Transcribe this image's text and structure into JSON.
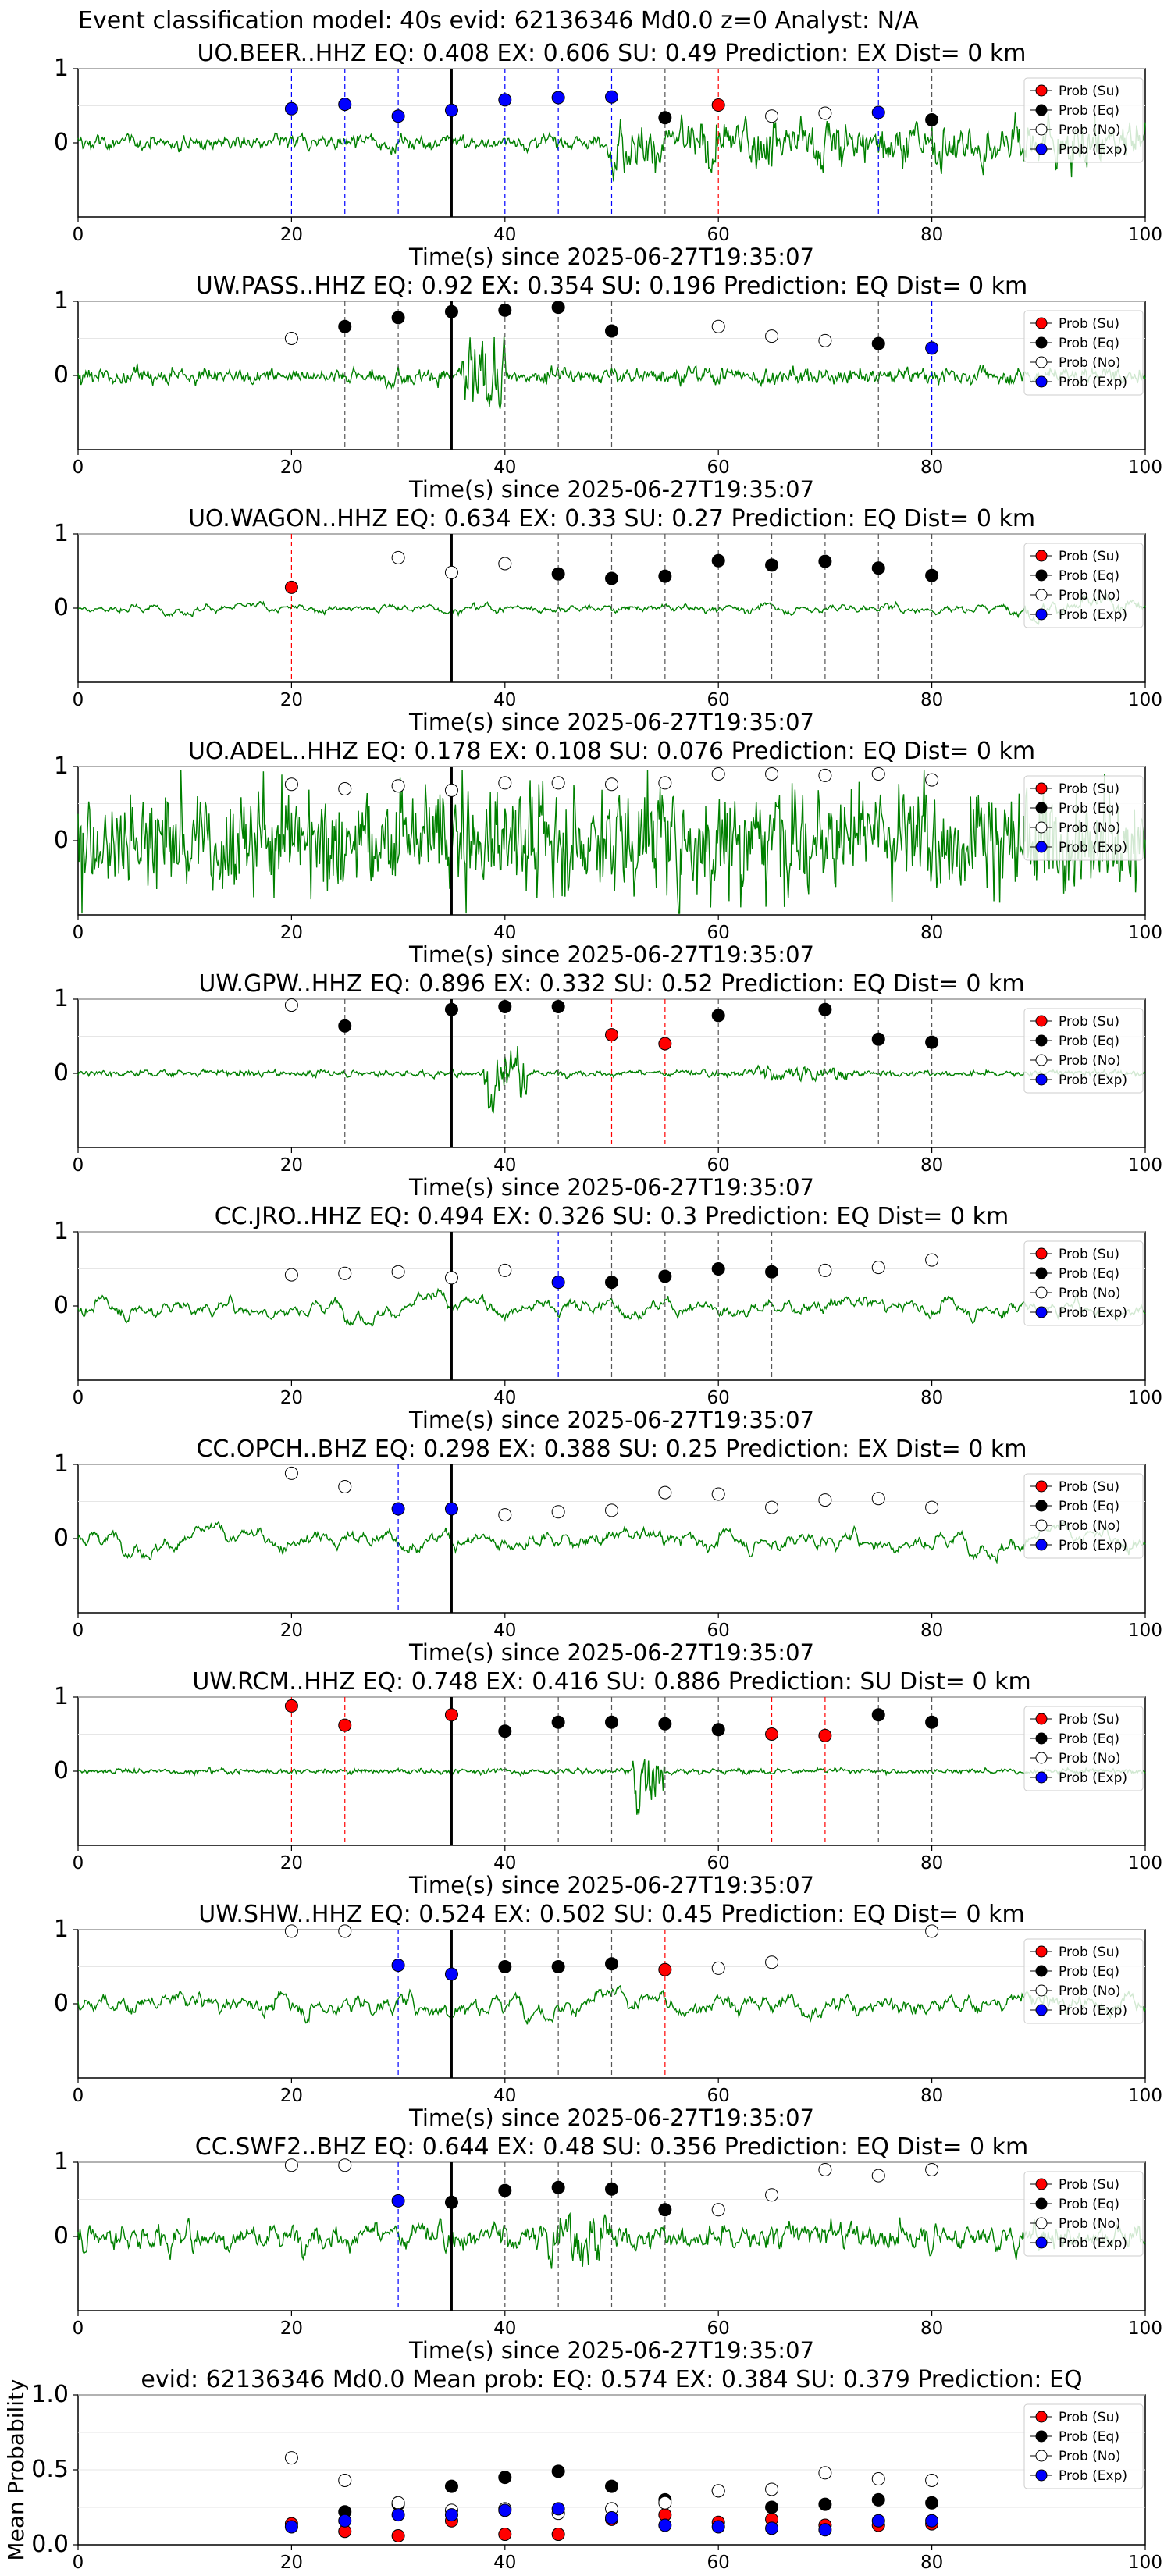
{
  "figure_title": "Event classification model: 40s evid: 62136346 Md0.0 z=0 Analyst: N/A",
  "xlabel": "Time(s) since 2025-06-27T19:35:07",
  "colors": {
    "su": "#ff0000",
    "eq": "#000000",
    "no": "#ffffff",
    "exp": "#0000ff",
    "wave": "#008000"
  },
  "legend": [
    "Prob (Su)",
    "Prob (Eq)",
    "Prob (No)",
    "Prob (Exp)"
  ],
  "chart_data": [
    {
      "type": "line",
      "title": "UO.BEER..HHZ   EQ: 0.408  EX: 0.606  SU: 0.49   Prediction: EX    Dist= 0 km",
      "xlim": [
        0,
        100
      ],
      "ylim": [
        -1,
        1
      ],
      "xticks": [
        0,
        20,
        40,
        60,
        80,
        100
      ],
      "yticks": [
        0,
        1
      ],
      "legend_position": "top-right",
      "series": [
        {
          "name": "Prob (Exp)",
          "x": [
            20,
            25,
            30,
            35,
            40,
            45,
            50,
            75
          ],
          "y": [
            0.46,
            0.52,
            0.36,
            0.44,
            0.58,
            0.61,
            0.62,
            0.41
          ]
        },
        {
          "name": "Prob (Eq)",
          "x": [
            55,
            80
          ],
          "y": [
            0.34,
            0.31
          ]
        },
        {
          "name": "Prob (Su)",
          "x": [
            60
          ],
          "y": [
            0.51
          ]
        },
        {
          "name": "Prob (No)",
          "x": [
            65,
            70
          ],
          "y": [
            0.36,
            0.4
          ]
        }
      ]
    },
    {
      "type": "line",
      "title": "UW.PASS..HHZ   EQ: 0.92  EX: 0.354  SU: 0.196   Prediction: EQ    Dist= 0 km",
      "xlim": [
        0,
        100
      ],
      "ylim": [
        -1,
        1
      ],
      "xticks": [
        0,
        20,
        40,
        60,
        80,
        100
      ],
      "yticks": [
        0,
        1
      ],
      "legend_position": "top-right",
      "series": [
        {
          "name": "Prob (No)",
          "x": [
            20,
            60,
            65,
            70
          ],
          "y": [
            0.5,
            0.66,
            0.53,
            0.47
          ]
        },
        {
          "name": "Prob (Eq)",
          "x": [
            25,
            30,
            35,
            40,
            45,
            50,
            75
          ],
          "y": [
            0.66,
            0.78,
            0.86,
            0.88,
            0.92,
            0.6,
            0.43
          ]
        },
        {
          "name": "Prob (Exp)",
          "x": [
            80
          ],
          "y": [
            0.37
          ]
        }
      ]
    },
    {
      "type": "line",
      "title": "UO.WAGON..HHZ   EQ: 0.634  EX: 0.33  SU: 0.27   Prediction: EQ    Dist= 0 km",
      "xlim": [
        0,
        100
      ],
      "ylim": [
        -1,
        1
      ],
      "xticks": [
        0,
        20,
        40,
        60,
        80,
        100
      ],
      "yticks": [
        0,
        1
      ],
      "legend_position": "top-right",
      "series": [
        {
          "name": "Prob (Su)",
          "x": [
            20
          ],
          "y": [
            0.28
          ]
        },
        {
          "name": "Prob (No)",
          "x": [
            30,
            35,
            40
          ],
          "y": [
            0.68,
            0.48,
            0.6
          ]
        },
        {
          "name": "Prob (Eq)",
          "x": [
            45,
            50,
            55,
            60,
            65,
            70,
            75,
            80
          ],
          "y": [
            0.46,
            0.4,
            0.43,
            0.64,
            0.58,
            0.63,
            0.54,
            0.44
          ]
        }
      ]
    },
    {
      "type": "line",
      "title": "UO.ADEL..HHZ   EQ: 0.178  EX: 0.108  SU: 0.076   Prediction: EQ    Dist= 0 km",
      "xlim": [
        0,
        100
      ],
      "ylim": [
        -1,
        1
      ],
      "xticks": [
        0,
        20,
        40,
        60,
        80,
        100
      ],
      "yticks": [
        0,
        1
      ],
      "legend_position": "top-right",
      "series": [
        {
          "name": "Prob (No)",
          "x": [
            20,
            25,
            30,
            35,
            40,
            45,
            50,
            55,
            60,
            65,
            70,
            75,
            80
          ],
          "y": [
            0.76,
            0.7,
            0.74,
            0.68,
            0.78,
            0.78,
            0.76,
            0.78,
            0.9,
            0.9,
            0.88,
            0.9,
            0.82
          ]
        }
      ]
    },
    {
      "type": "line",
      "title": "UW.GPW..HHZ   EQ: 0.896  EX: 0.332  SU: 0.52   Prediction: EQ    Dist= 0 km",
      "xlim": [
        0,
        100
      ],
      "ylim": [
        -1,
        1
      ],
      "xticks": [
        0,
        20,
        40,
        60,
        80,
        100
      ],
      "yticks": [
        0,
        1
      ],
      "legend_position": "top-right",
      "series": [
        {
          "name": "Prob (No)",
          "x": [
            20
          ],
          "y": [
            0.92
          ]
        },
        {
          "name": "Prob (Eq)",
          "x": [
            25,
            35,
            40,
            45,
            60,
            70,
            75,
            80
          ],
          "y": [
            0.64,
            0.86,
            0.9,
            0.9,
            0.78,
            0.86,
            0.46,
            0.42
          ]
        },
        {
          "name": "Prob (Su)",
          "x": [
            50,
            55
          ],
          "y": [
            0.52,
            0.4
          ]
        }
      ]
    },
    {
      "type": "line",
      "title": "CC.JRO..HHZ   EQ: 0.494  EX: 0.326  SU: 0.3   Prediction: EQ    Dist= 0 km",
      "xlim": [
        0,
        100
      ],
      "ylim": [
        -1,
        1
      ],
      "xticks": [
        0,
        20,
        40,
        60,
        80,
        100
      ],
      "yticks": [
        0,
        1
      ],
      "legend_position": "top-right",
      "series": [
        {
          "name": "Prob (No)",
          "x": [
            20,
            25,
            30,
            35,
            40,
            70,
            75,
            80
          ],
          "y": [
            0.42,
            0.44,
            0.46,
            0.38,
            0.48,
            0.48,
            0.52,
            0.62
          ]
        },
        {
          "name": "Prob (Exp)",
          "x": [
            45
          ],
          "y": [
            0.32
          ]
        },
        {
          "name": "Prob (Eq)",
          "x": [
            50,
            55,
            60,
            65
          ],
          "y": [
            0.32,
            0.4,
            0.5,
            0.46
          ]
        }
      ]
    },
    {
      "type": "line",
      "title": "CC.OPCH..BHZ   EQ: 0.298  EX: 0.388  SU: 0.25   Prediction: EX    Dist= 0 km",
      "xlim": [
        0,
        100
      ],
      "ylim": [
        -1,
        1
      ],
      "xticks": [
        0,
        20,
        40,
        60,
        80,
        100
      ],
      "yticks": [
        0,
        1
      ],
      "legend_position": "top-right",
      "series": [
        {
          "name": "Prob (No)",
          "x": [
            20,
            25,
            40,
            45,
            50,
            55,
            60,
            65,
            70,
            75,
            80
          ],
          "y": [
            0.88,
            0.7,
            0.32,
            0.36,
            0.38,
            0.62,
            0.6,
            0.42,
            0.52,
            0.54,
            0.42
          ]
        },
        {
          "name": "Prob (Exp)",
          "x": [
            30,
            35
          ],
          "y": [
            0.4,
            0.4
          ]
        }
      ]
    },
    {
      "type": "line",
      "title": "UW.RCM..HHZ   EQ: 0.748  EX: 0.416  SU: 0.886   Prediction: SU    Dist= 0 km",
      "xlim": [
        0,
        100
      ],
      "ylim": [
        -1,
        1
      ],
      "xticks": [
        0,
        20,
        40,
        60,
        80,
        100
      ],
      "yticks": [
        0,
        1
      ],
      "legend_position": "top-right",
      "series": [
        {
          "name": "Prob (Su)",
          "x": [
            20,
            25,
            35,
            65,
            70
          ],
          "y": [
            0.88,
            0.62,
            0.76,
            0.5,
            0.48
          ]
        },
        {
          "name": "Prob (Eq)",
          "x": [
            40,
            45,
            50,
            55,
            60,
            75,
            80
          ],
          "y": [
            0.54,
            0.66,
            0.66,
            0.64,
            0.56,
            0.76,
            0.66
          ]
        }
      ]
    },
    {
      "type": "line",
      "title": "UW.SHW..HHZ   EQ: 0.524  EX: 0.502  SU: 0.45   Prediction: EQ    Dist= 0 km",
      "xlim": [
        0,
        100
      ],
      "ylim": [
        -1,
        1
      ],
      "xticks": [
        0,
        20,
        40,
        60,
        80,
        100
      ],
      "yticks": [
        0,
        1
      ],
      "legend_position": "top-right",
      "series": [
        {
          "name": "Prob (No)",
          "x": [
            20,
            25,
            60,
            65,
            80
          ],
          "y": [
            0.98,
            0.98,
            0.48,
            0.56,
            0.98
          ]
        },
        {
          "name": "Prob (Exp)",
          "x": [
            30,
            35
          ],
          "y": [
            0.52,
            0.4
          ]
        },
        {
          "name": "Prob (Eq)",
          "x": [
            40,
            45,
            50
          ],
          "y": [
            0.5,
            0.5,
            0.54
          ]
        },
        {
          "name": "Prob (Su)",
          "x": [
            55
          ],
          "y": [
            0.46
          ]
        }
      ]
    },
    {
      "type": "line",
      "title": "CC.SWF2..BHZ   EQ: 0.644  EX: 0.48  SU: 0.356   Prediction: EQ    Dist= 0 km",
      "xlim": [
        0,
        100
      ],
      "ylim": [
        -1,
        1
      ],
      "xticks": [
        0,
        20,
        40,
        60,
        80,
        100
      ],
      "yticks": [
        0,
        1
      ],
      "legend_position": "top-right",
      "series": [
        {
          "name": "Prob (No)",
          "x": [
            20,
            25,
            60,
            65,
            70,
            75,
            80
          ],
          "y": [
            0.96,
            0.96,
            0.36,
            0.56,
            0.9,
            0.82,
            0.9
          ]
        },
        {
          "name": "Prob (Exp)",
          "x": [
            30
          ],
          "y": [
            0.48
          ]
        },
        {
          "name": "Prob (Eq)",
          "x": [
            35,
            40,
            45,
            50,
            55
          ],
          "y": [
            0.46,
            0.62,
            0.66,
            0.64,
            0.36
          ]
        }
      ]
    },
    {
      "type": "scatter",
      "title": "evid: 62136346  Md0.0   Mean prob:   EQ: 0.574  EX: 0.384  SU: 0.379   Prediction: EQ",
      "ylabel": "Mean Probability",
      "xlim": [
        0,
        100
      ],
      "ylim": [
        0,
        1
      ],
      "xticks": [
        0,
        20,
        40,
        60,
        80,
        100
      ],
      "yticks": [
        0.0,
        0.5,
        1.0
      ],
      "legend_position": "top-right",
      "series": [
        {
          "name": "Prob (Su)",
          "x": [
            20,
            25,
            30,
            35,
            40,
            45,
            50,
            55,
            60,
            65,
            70,
            75,
            80
          ],
          "y": [
            0.14,
            0.09,
            0.06,
            0.16,
            0.07,
            0.07,
            0.17,
            0.2,
            0.15,
            0.17,
            0.13,
            0.13,
            0.14
          ]
        },
        {
          "name": "Prob (Eq)",
          "x": [
            25,
            30,
            35,
            40,
            45,
            50,
            55,
            60,
            65,
            70,
            75,
            80
          ],
          "y": [
            0.22,
            0.27,
            0.39,
            0.45,
            0.49,
            0.39,
            0.3,
            0.36,
            0.25,
            0.27,
            0.3,
            0.28
          ]
        },
        {
          "name": "Prob (No)",
          "x": [
            20,
            25,
            30,
            35,
            40,
            45,
            50,
            55,
            60,
            65,
            70,
            75,
            80
          ],
          "y": [
            0.58,
            0.43,
            0.28,
            0.23,
            0.24,
            0.21,
            0.24,
            0.28,
            0.36,
            0.37,
            0.48,
            0.44,
            0.43
          ]
        },
        {
          "name": "Prob (Exp)",
          "x": [
            20,
            25,
            30,
            35,
            40,
            45,
            50,
            55,
            60,
            65,
            70,
            75,
            80
          ],
          "y": [
            0.12,
            0.16,
            0.2,
            0.2,
            0.23,
            0.24,
            0.18,
            0.13,
            0.12,
            0.11,
            0.1,
            0.16,
            0.16
          ]
        }
      ]
    }
  ]
}
